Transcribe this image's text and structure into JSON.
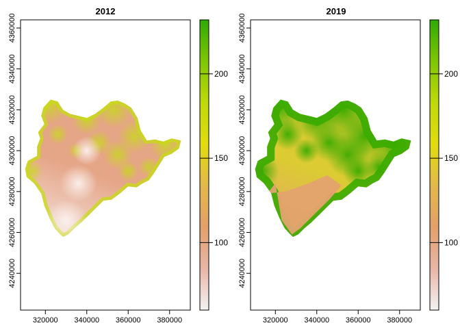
{
  "chart_data": [
    {
      "type": "heatmap",
      "title": "2012",
      "xlabel": "",
      "ylabel": "",
      "xlim": [
        308000,
        390000
      ],
      "ylim": [
        4222000,
        4364000
      ],
      "x_ticks": [
        320000,
        340000,
        360000,
        380000
      ],
      "y_ticks": [
        4240000,
        4260000,
        4280000,
        4300000,
        4320000,
        4340000,
        4360000
      ],
      "grid": false,
      "colorbar": {
        "range": [
          60,
          232
        ],
        "ticks": [
          100,
          150,
          200
        ],
        "colors": [
          "#f2f2f2",
          "#e9b6a6",
          "#e3a068",
          "#e3b84a",
          "#e2dc10",
          "#bfd90b",
          "#7fc700",
          "#2eab00"
        ]
      },
      "map_palette": {
        "low": "#f4e6e2",
        "mid": "#e5a587",
        "high": "#c6dc14"
      },
      "summary": {
        "min_approx": 65,
        "max_approx": 170
      }
    },
    {
      "type": "heatmap",
      "title": "2019",
      "xlabel": "",
      "ylabel": "",
      "xlim": [
        308000,
        390000
      ],
      "ylim": [
        4222000,
        4364000
      ],
      "x_ticks": [
        320000,
        340000,
        360000,
        380000
      ],
      "y_ticks": [
        4240000,
        4260000,
        4280000,
        4300000,
        4320000,
        4340000,
        4360000
      ],
      "grid": false,
      "colorbar": {
        "range": [
          60,
          232
        ],
        "ticks": [
          100,
          150,
          200
        ],
        "colors": [
          "#f2f2f2",
          "#e9b6a6",
          "#e3a068",
          "#e3b84a",
          "#e2dc10",
          "#bfd90b",
          "#7fc700",
          "#2eab00"
        ]
      },
      "map_palette": {
        "low": "#e3a36e",
        "mid": "#dccb33",
        "high": "#3aab00"
      },
      "summary": {
        "min_approx": 110,
        "max_approx": 225
      }
    }
  ],
  "region": {
    "outline": [
      [
        327200,
        4259000
      ],
      [
        324500,
        4262000
      ],
      [
        322000,
        4267000
      ],
      [
        319500,
        4273000
      ],
      [
        318000,
        4279000
      ],
      [
        314500,
        4284000
      ],
      [
        311000,
        4287000
      ],
      [
        310200,
        4291000
      ],
      [
        311500,
        4295000
      ],
      [
        316000,
        4297500
      ],
      [
        316000,
        4302000
      ],
      [
        317500,
        4306000
      ],
      [
        316500,
        4309000
      ],
      [
        319500,
        4313000
      ],
      [
        318000,
        4317000
      ],
      [
        319000,
        4321000
      ],
      [
        322500,
        4325000
      ],
      [
        326000,
        4324000
      ],
      [
        328500,
        4320000
      ],
      [
        332000,
        4318000
      ],
      [
        336000,
        4317000
      ],
      [
        340000,
        4316000
      ],
      [
        344000,
        4318000
      ],
      [
        348000,
        4321000
      ],
      [
        351500,
        4324000
      ],
      [
        355000,
        4324500
      ],
      [
        358500,
        4323000
      ],
      [
        361500,
        4321000
      ],
      [
        364500,
        4316000
      ],
      [
        366000,
        4310000
      ],
      [
        369000,
        4305000
      ],
      [
        373000,
        4305500
      ],
      [
        377000,
        4304500
      ],
      [
        381000,
        4306000
      ],
      [
        385500,
        4305000
      ],
      [
        384500,
        4301000
      ],
      [
        381000,
        4298500
      ],
      [
        377500,
        4297000
      ],
      [
        375000,
        4293000
      ],
      [
        372500,
        4289000
      ],
      [
        370000,
        4285500
      ],
      [
        367000,
        4284000
      ],
      [
        364000,
        4282000
      ],
      [
        360000,
        4282500
      ],
      [
        356000,
        4279000
      ],
      [
        352000,
        4276000
      ],
      [
        348000,
        4275500
      ],
      [
        344500,
        4272000
      ],
      [
        341000,
        4268500
      ],
      [
        337500,
        4265000
      ],
      [
        334000,
        4262000
      ],
      [
        331000,
        4259000
      ],
      [
        328500,
        4257800
      ]
    ],
    "hills": [
      [
        322000,
        4322000,
        9000
      ],
      [
        340000,
        4315000,
        7000
      ],
      [
        353000,
        4320000,
        9000
      ],
      [
        378000,
        4303000,
        8000
      ],
      [
        313500,
        4290000,
        5500
      ],
      [
        363000,
        4307000,
        8000
      ],
      [
        346000,
        4304000,
        6000
      ],
      [
        326000,
        4308000,
        5000
      ],
      [
        355000,
        4298000,
        7000
      ],
      [
        360000,
        4290000,
        5000
      ],
      [
        335000,
        4300000,
        4000
      ],
      [
        370000,
        4292000,
        5000
      ]
    ],
    "valley_2019": [
      [
        320000,
        4284000
      ],
      [
        316000,
        4279000
      ],
      [
        325000,
        4280000
      ],
      [
        336000,
        4284000
      ],
      [
        345000,
        4288000
      ],
      [
        352000,
        4283000
      ],
      [
        346000,
        4276000
      ],
      [
        338000,
        4268000
      ],
      [
        332000,
        4262000
      ],
      [
        328000,
        4259000
      ],
      [
        323000,
        4266000
      ]
    ]
  }
}
